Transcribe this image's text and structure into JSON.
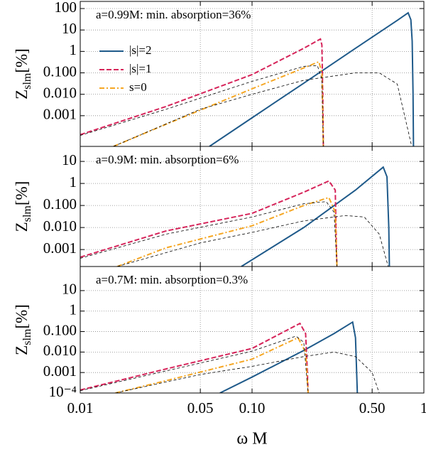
{
  "chart_data": [
    {
      "type": "line",
      "title": "a=0.99M: min. absorption=36%",
      "ylabel": [
        "Z",
        "slm",
        "[%]"
      ],
      "xscale": "log",
      "yscale": "log",
      "grid": true,
      "legend": "upper left",
      "xtick_labels": false,
      "xlim": [
        0.01,
        1
      ],
      "xticks": [
        0.01,
        0.05,
        0.1,
        0.5,
        1
      ],
      "ylim": [
        3.7e-05,
        215
      ],
      "yticks": [
        {
          "value": 0.001,
          "label": "0.001"
        },
        {
          "value": 0.01,
          "label": "0.010"
        },
        {
          "value": 0.1,
          "label": "0.100"
        },
        1,
        10,
        100
      ],
      "series": [
        {
          "name": "|s|=2",
          "color": "#1f5a8a",
          "linestyle": "solid",
          "x": [
            0.0565,
            0.1,
            0.2,
            0.4,
            0.7,
            0.81,
            0.84,
            0.855,
            0.865,
            0.87
          ],
          "values": [
            3.7e-05,
            0.0008,
            0.033,
            1.4,
            28,
            63,
            30,
            3,
            0.01,
            3.7e-05
          ]
        },
        {
          "name": "|s|=1",
          "color": "#d6245a",
          "linestyle": "dashed",
          "x": [
            0.01,
            0.0316,
            0.1,
            0.2,
            0.25,
            0.255,
            0.258,
            0.26
          ],
          "values": [
            0.00013,
            0.0027,
            0.083,
            1.4,
            3.8,
            2,
            0.01,
            3.7e-05
          ]
        },
        {
          "name": "s=0",
          "color": "#f5a623",
          "linestyle": "dashdot",
          "x": [
            0.0156,
            0.0316,
            0.1,
            0.2,
            0.245,
            0.255,
            0.258,
            0.26
          ],
          "values": [
            3.7e-05,
            0.0004,
            0.018,
            0.17,
            0.33,
            0.1,
            0.001,
            3.7e-05
          ]
        },
        {
          "color": "#000000",
          "linestyle": "thin-dashed",
          "x": [
            0.01,
            0.0316,
            0.1,
            0.2,
            0.24,
            0.255,
            0.26
          ],
          "values": [
            0.00012,
            0.002,
            0.04,
            0.2,
            0.22,
            0.05,
            3.7e-05
          ]
        },
        {
          "color": "#000000",
          "linestyle": "thin-dashed",
          "x": [
            0.0156,
            0.05,
            0.1,
            0.2,
            0.4,
            0.55,
            0.7,
            0.85
          ],
          "values": [
            3.7e-05,
            0.002,
            0.01,
            0.045,
            0.1,
            0.1,
            0.03,
            3.7e-05
          ]
        }
      ]
    },
    {
      "type": "line",
      "title": "a=0.9M: min. absorption=6%",
      "ylabel": [
        "Z",
        "slm",
        "[%]"
      ],
      "xscale": "log",
      "yscale": "log",
      "grid": true,
      "xtick_labels": false,
      "xlim": [
        0.01,
        1
      ],
      "xticks": [
        0.01,
        0.05,
        0.1,
        0.5,
        1
      ],
      "ylim": [
        0.00017,
        48
      ],
      "yticks": [
        0.001,
        {
          "value": 0.01,
          "label": "0.010"
        },
        {
          "value": 0.1,
          "label": "0.100"
        },
        1,
        10
      ],
      "series": [
        {
          "name": "|s|=2",
          "color": "#1f5a8a",
          "linestyle": "solid",
          "x": [
            0.0866,
            0.2,
            0.4,
            0.58,
            0.61,
            0.625,
            0.63
          ],
          "values": [
            0.00017,
            0.01,
            0.5,
            5.5,
            2,
            0.01,
            0.00017
          ]
        },
        {
          "name": "|s|=1",
          "color": "#d6245a",
          "linestyle": "dashed",
          "x": [
            0.01,
            0.0316,
            0.1,
            0.2,
            0.28,
            0.305,
            0.31,
            0.312
          ],
          "values": [
            0.00045,
            0.007,
            0.044,
            0.4,
            1.3,
            0.5,
            0.001,
            0.00017
          ]
        },
        {
          "name": "s=0",
          "color": "#f5a623",
          "linestyle": "dashdot",
          "x": [
            0.0164,
            0.0316,
            0.1,
            0.2,
            0.28,
            0.305,
            0.312
          ],
          "values": [
            0.00017,
            0.0012,
            0.012,
            0.1,
            0.23,
            0.05,
            0.00017
          ]
        },
        {
          "color": "#000000",
          "linestyle": "thin-dashed",
          "x": [
            0.01,
            0.0316,
            0.1,
            0.2,
            0.27,
            0.3,
            0.312
          ],
          "values": [
            0.0004,
            0.005,
            0.03,
            0.12,
            0.15,
            0.05,
            0.00017
          ]
        },
        {
          "color": "#000000",
          "linestyle": "thin-dashed",
          "x": [
            0.0164,
            0.05,
            0.1,
            0.2,
            0.35,
            0.45,
            0.55,
            0.62
          ],
          "values": [
            0.00017,
            0.002,
            0.006,
            0.02,
            0.035,
            0.03,
            0.005,
            0.00017
          ]
        }
      ]
    },
    {
      "type": "line",
      "title": "a=0.7M: min. absorption=0.3%",
      "ylabel": [
        "Z",
        "slm",
        "[%]"
      ],
      "xlabel": "ω M",
      "xscale": "log",
      "yscale": "log",
      "grid": true,
      "xtick_labels": true,
      "xlim": [
        0.01,
        1
      ],
      "xticks": [
        0.01,
        0.05,
        {
          "value": 0.1,
          "label": "0.10"
        },
        {
          "value": 0.5,
          "label": "0.50"
        },
        1
      ],
      "ylim": [
        0.0001,
        150
      ],
      "yticks": [
        {
          "value": 0.0001,
          "label": "10⁻⁴"
        },
        0.001,
        {
          "value": 0.01,
          "label": "0.010"
        },
        {
          "value": 0.1,
          "label": "0.100"
        },
        1,
        10
      ],
      "series": [
        {
          "name": "|s|=2",
          "color": "#1f5a8a",
          "linestyle": "solid",
          "x": [
            0.065,
            0.1,
            0.2,
            0.3,
            0.385,
            0.4,
            0.41
          ],
          "values": [
            0.0001,
            0.0006,
            0.012,
            0.08,
            0.29,
            0.05,
            0.0001
          ]
        },
        {
          "name": "|s|=1",
          "color": "#d6245a",
          "linestyle": "dashed",
          "x": [
            0.01,
            0.0316,
            0.1,
            0.19,
            0.205,
            0.21,
            0.212
          ],
          "values": [
            0.00014,
            0.0015,
            0.015,
            0.25,
            0.08,
            0.001,
            0.0001
          ]
        },
        {
          "name": "s=0",
          "color": "#f5a623",
          "linestyle": "dashdot",
          "x": [
            0.016,
            0.0316,
            0.1,
            0.185,
            0.205,
            0.212
          ],
          "values": [
            0.0001,
            0.0004,
            0.0045,
            0.05,
            0.01,
            0.0001
          ]
        },
        {
          "color": "#000000",
          "linestyle": "thin-dashed",
          "x": [
            0.01,
            0.0316,
            0.1,
            0.18,
            0.2,
            0.212
          ],
          "values": [
            0.00013,
            0.0012,
            0.011,
            0.06,
            0.03,
            0.0001
          ]
        },
        {
          "color": "#000000",
          "linestyle": "thin-dashed",
          "x": [
            0.016,
            0.05,
            0.1,
            0.2,
            0.3,
            0.4,
            0.5,
            0.55
          ],
          "values": [
            0.0001,
            0.0008,
            0.002,
            0.006,
            0.01,
            0.006,
            0.001,
            0.0001
          ]
        }
      ]
    }
  ]
}
